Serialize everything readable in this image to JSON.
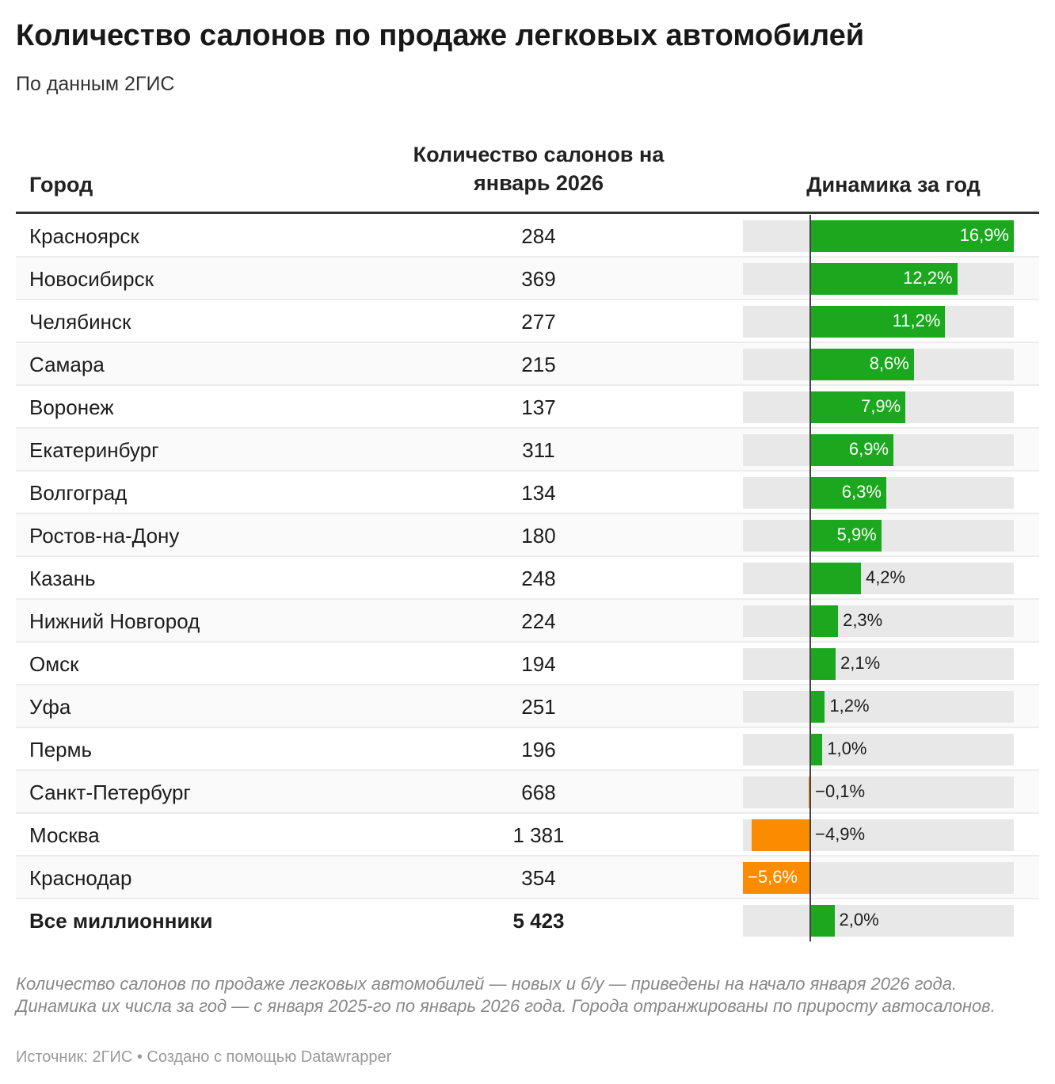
{
  "title": "Количество салонов по продаже легковых автомобилей",
  "subtitle": "По данным 2ГИС",
  "headers": {
    "city": "Город",
    "count": "Количество салонов на январь 2026",
    "dynamics": "Динамика за год"
  },
  "colors": {
    "positive": "#1ba81f",
    "negative": "#fb8c00",
    "bar_background": "#e8e8e8"
  },
  "chart_data": {
    "type": "table",
    "columns": [
      "Город",
      "Количество салонов на январь 2026",
      "Динамика за год"
    ],
    "xlim": [
      -5.6,
      16.9
    ],
    "rows": [
      {
        "city": "Красноярск",
        "count": "284",
        "change": 16.9,
        "label": "16,9%"
      },
      {
        "city": "Новосибирск",
        "count": "369",
        "change": 12.2,
        "label": "12,2%"
      },
      {
        "city": "Челябинск",
        "count": "277",
        "change": 11.2,
        "label": "11,2%"
      },
      {
        "city": "Самара",
        "count": "215",
        "change": 8.6,
        "label": "8,6%"
      },
      {
        "city": "Воронеж",
        "count": "137",
        "change": 7.9,
        "label": "7,9%"
      },
      {
        "city": "Екатеринбург",
        "count": "311",
        "change": 6.9,
        "label": "6,9%"
      },
      {
        "city": "Волгоград",
        "count": "134",
        "change": 6.3,
        "label": "6,3%"
      },
      {
        "city": "Ростов-на-Дону",
        "count": "180",
        "change": 5.9,
        "label": "5,9%"
      },
      {
        "city": "Казань",
        "count": "248",
        "change": 4.2,
        "label": "4,2%"
      },
      {
        "city": "Нижний Новгород",
        "count": "224",
        "change": 2.3,
        "label": "2,3%"
      },
      {
        "city": "Омск",
        "count": "194",
        "change": 2.1,
        "label": "2,1%"
      },
      {
        "city": "Уфа",
        "count": "251",
        "change": 1.2,
        "label": "1,2%"
      },
      {
        "city": "Пермь",
        "count": "196",
        "change": 1.0,
        "label": "1,0%"
      },
      {
        "city": "Санкт-Петербург",
        "count": "668",
        "change": -0.1,
        "label": "−0,1%"
      },
      {
        "city": "Москва",
        "count": "1 381",
        "change": -4.9,
        "label": "−4,9%"
      },
      {
        "city": "Краснодар",
        "count": "354",
        "change": -5.6,
        "label": "−5,6%"
      }
    ],
    "total": {
      "city": "Все миллионники",
      "count": "5 423",
      "change": 2.0,
      "label": "2,0%"
    }
  },
  "note": "Количество салонов по продаже легковых автомобилей — новых и б/у — приведены на начало января 2026 года. Динамика их числа за год — с января 2025-го по январь 2026 года. Города отранжированы по приросту автосалонов.",
  "source": "Источник: 2ГИС • Создано с помощью Datawrapper"
}
